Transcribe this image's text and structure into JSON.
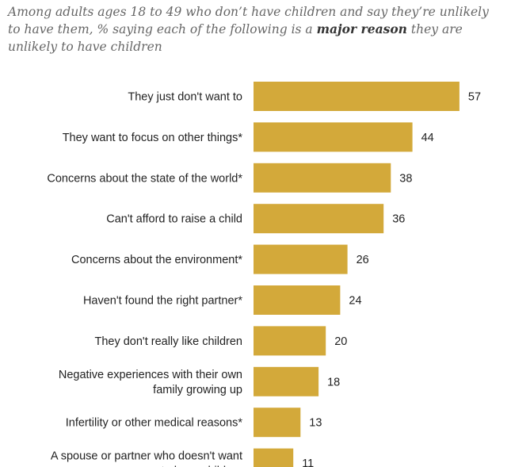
{
  "subtitle": {
    "part1": "Among adults ages 18 to 49 who don’t have children and say they’re unlikely to have them, % saying each of the following is a ",
    "emphasis": "major reason",
    "part2": " they are unlikely to have children"
  },
  "colors": {
    "bar": "#D3A93A",
    "subtitle_text": "#666666",
    "label_text": "#222222"
  },
  "chart_data": {
    "type": "bar",
    "orientation": "horizontal",
    "title": "",
    "xlabel": "",
    "ylabel": "",
    "xlim": [
      0,
      57
    ],
    "grid": false,
    "legend": "none",
    "categories": [
      [
        "They just don't want to"
      ],
      [
        "They want to focus on other things*"
      ],
      [
        "Concerns about the state of the world*"
      ],
      [
        "Can't afford to raise a child"
      ],
      [
        "Concerns about the environment*"
      ],
      [
        "Haven't found the right partner*"
      ],
      [
        "They don't really like children"
      ],
      [
        "Negative experiences with their own",
        "family growing up"
      ],
      [
        "Infertility or other medical reasons*"
      ],
      [
        "A spouse or partner who doesn't want",
        "to have children"
      ]
    ],
    "values": [
      57,
      44,
      38,
      36,
      26,
      24,
      20,
      18,
      13,
      11
    ]
  }
}
